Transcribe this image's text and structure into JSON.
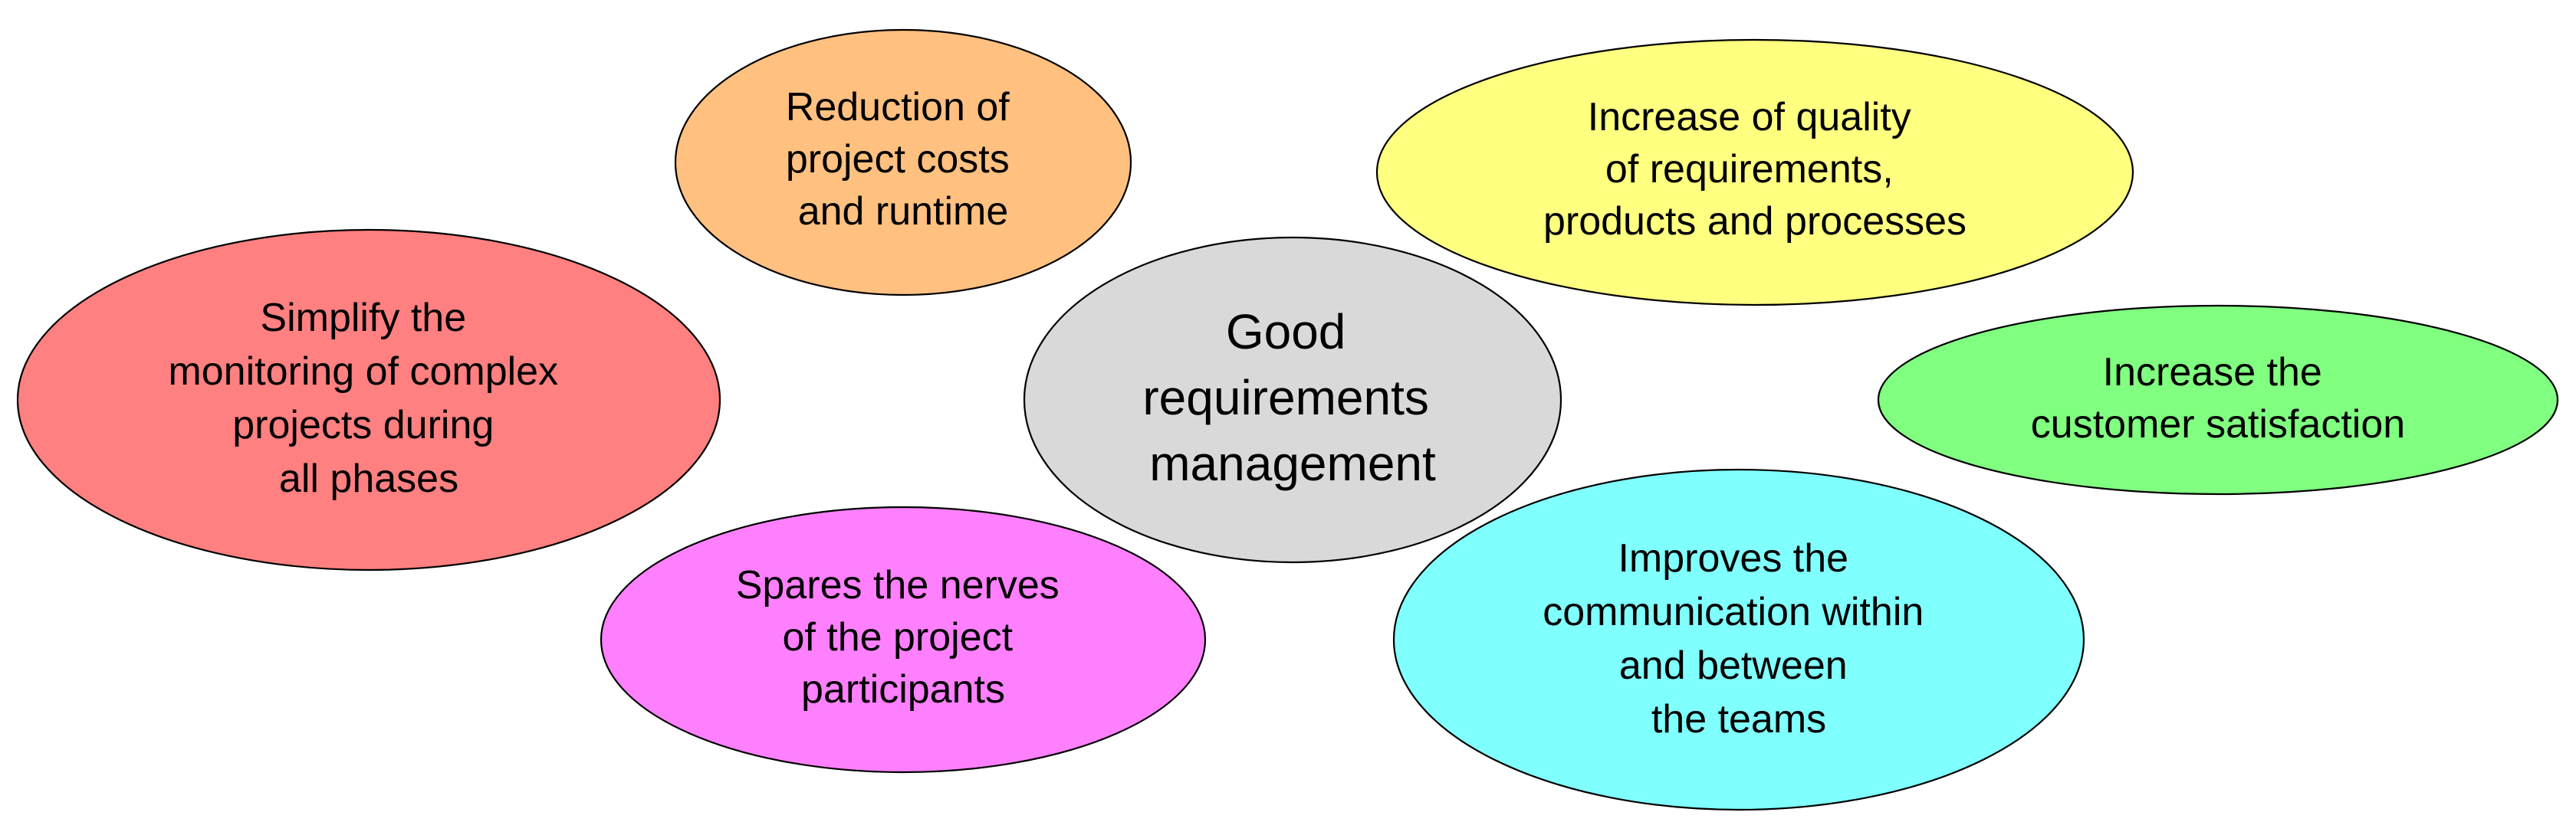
{
  "center": {
    "label_lines": [
      "Good",
      "requirements",
      "management"
    ],
    "fill": "#d9d9d9"
  },
  "bubbles": [
    {
      "id": "cost",
      "label_lines": [
        "Reduction of",
        "project costs",
        "and runtime"
      ],
      "fill": "#ffc080"
    },
    {
      "id": "quality",
      "label_lines": [
        "Increase of quality",
        "of requirements,",
        "products and processes"
      ],
      "fill": "#ffff80"
    },
    {
      "id": "monitoring",
      "label_lines": [
        "Simplify the",
        "monitoring of complex",
        "projects during",
        "all phases"
      ],
      "fill": "#ff8080"
    },
    {
      "id": "satisfaction",
      "label_lines": [
        "Increase the",
        "customer satisfaction"
      ],
      "fill": "#80ff80"
    },
    {
      "id": "nerves",
      "label_lines": [
        "Spares the nerves",
        "of the project",
        "participants"
      ],
      "fill": "#ff80ff"
    },
    {
      "id": "communication",
      "label_lines": [
        "Improves the",
        "communication within",
        "and between",
        "the teams"
      ],
      "fill": "#80ffff"
    }
  ]
}
